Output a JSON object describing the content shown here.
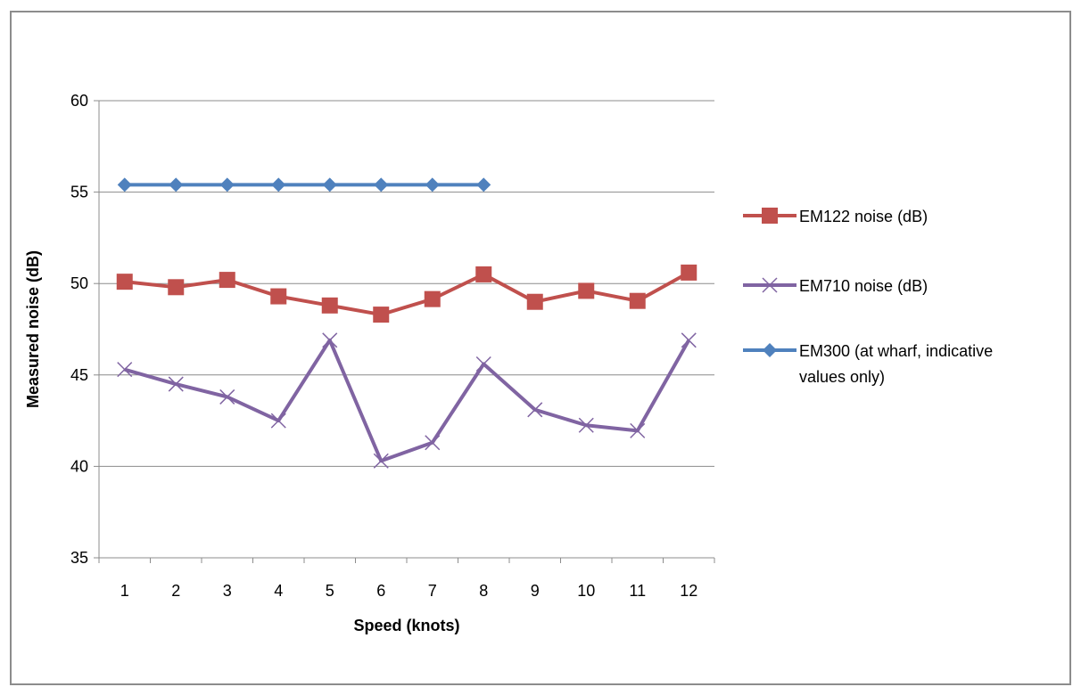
{
  "chart_data": {
    "type": "line",
    "title": "",
    "xlabel": "Speed (knots)",
    "ylabel": "Measured noise (dB)",
    "ylim": [
      35,
      60
    ],
    "yticks": [
      35,
      40,
      45,
      50,
      55,
      60
    ],
    "grid": "horizontal",
    "legend_position": "right",
    "x": [
      "1",
      "2",
      "3",
      "4",
      "5",
      "6",
      "7",
      "8",
      "9",
      "10",
      "11",
      "12"
    ],
    "series": [
      {
        "name": "EM122 noise (dB)",
        "color": "#c0504d",
        "marker": "square",
        "values": [
          50.1,
          49.8,
          50.2,
          49.3,
          48.8,
          48.3,
          49.15,
          50.5,
          49.0,
          49.6,
          49.05,
          50.6
        ]
      },
      {
        "name": "EM710 noise (dB)",
        "color": "#8064a2",
        "marker": "x",
        "values": [
          45.3,
          44.5,
          43.8,
          42.5,
          46.9,
          40.3,
          41.3,
          45.6,
          43.1,
          42.25,
          41.95,
          46.9
        ]
      },
      {
        "name": "EM300 (at wharf, indicative values only)",
        "legend_lines": [
          "EM300 (at wharf, indicative",
          "values only)"
        ],
        "color": "#4f81bd",
        "marker": "diamond",
        "values": [
          55.4,
          55.4,
          55.4,
          55.4,
          55.4,
          55.4,
          55.4,
          55.4,
          null,
          null,
          null,
          null
        ]
      }
    ]
  }
}
